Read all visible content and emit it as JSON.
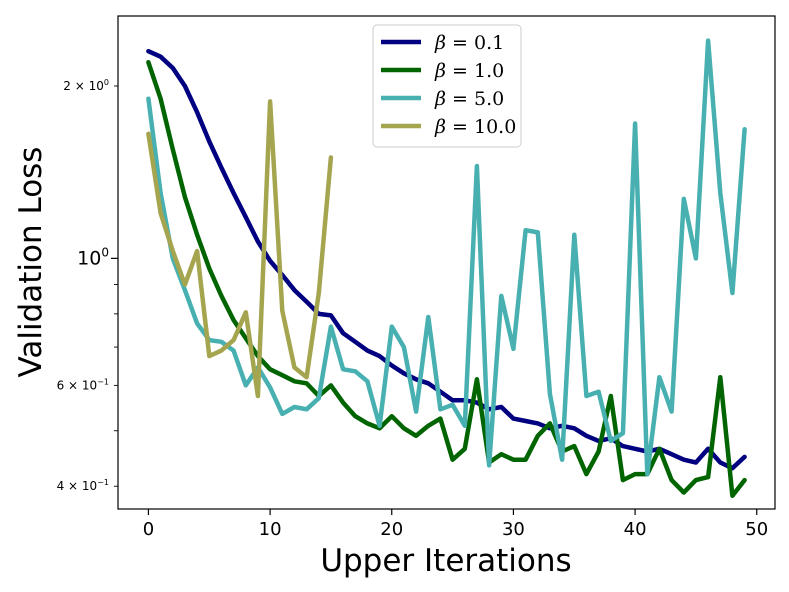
{
  "chart_data": {
    "type": "line",
    "title": "",
    "xlabel": "Upper Iterations",
    "ylabel": "Validation Loss",
    "yscale": "log",
    "xlim": [
      -2.5,
      51.5
    ],
    "ylim": [
      0.365,
      2.65
    ],
    "x_ticks": [
      0,
      10,
      20,
      30,
      40,
      50
    ],
    "y_ticks": [
      {
        "value": 0.4,
        "mantissa": "4",
        "sep": "×",
        "base": "10",
        "exp": "−1",
        "size": "small"
      },
      {
        "value": 0.6,
        "mantissa": "6",
        "sep": "×",
        "base": "10",
        "exp": "−1",
        "size": "small"
      },
      {
        "value": 1.0,
        "mantissa": "",
        "sep": "",
        "base": "10",
        "exp": "0",
        "size": "large"
      },
      {
        "value": 2.0,
        "mantissa": "2",
        "sep": "×",
        "base": "10",
        "exp": "0",
        "size": "small"
      }
    ],
    "legend_location": "top-center",
    "series": [
      {
        "name": "β = 0.1",
        "sym": "β",
        "eq": " = 0.1",
        "color": "#000080",
        "x": [
          0,
          1,
          2,
          3,
          4,
          5,
          6,
          7,
          8,
          9,
          10,
          11,
          12,
          13,
          14,
          15,
          16,
          17,
          18,
          19,
          20,
          21,
          22,
          23,
          24,
          25,
          26,
          27,
          28,
          29,
          30,
          31,
          32,
          33,
          34,
          35,
          36,
          37,
          38,
          39,
          40,
          41,
          42,
          43,
          44,
          45,
          46,
          47,
          48,
          49
        ],
        "values": [
          2.3,
          2.25,
          2.15,
          2.0,
          1.8,
          1.6,
          1.44,
          1.3,
          1.18,
          1.07,
          0.99,
          0.935,
          0.88,
          0.84,
          0.8,
          0.795,
          0.74,
          0.715,
          0.69,
          0.675,
          0.65,
          0.63,
          0.615,
          0.605,
          0.585,
          0.565,
          0.565,
          0.56,
          0.545,
          0.55,
          0.525,
          0.52,
          0.515,
          0.505,
          0.51,
          0.505,
          0.49,
          0.48,
          0.485,
          0.47,
          0.465,
          0.46,
          0.465,
          0.455,
          0.445,
          0.44,
          0.465,
          0.44,
          0.43,
          0.45
        ]
      },
      {
        "name": "β = 1.0",
        "sym": "β",
        "eq": " = 1.0",
        "color": "#006400",
        "x": [
          0,
          1,
          2,
          3,
          4,
          5,
          6,
          7,
          8,
          9,
          10,
          11,
          12,
          13,
          14,
          15,
          16,
          17,
          18,
          19,
          20,
          21,
          22,
          23,
          24,
          25,
          26,
          27,
          28,
          29,
          30,
          31,
          32,
          33,
          34,
          35,
          36,
          37,
          38,
          39,
          40,
          41,
          42,
          43,
          44,
          45,
          46,
          47,
          48,
          49
        ],
        "values": [
          2.2,
          1.9,
          1.55,
          1.28,
          1.1,
          0.96,
          0.86,
          0.78,
          0.725,
          0.675,
          0.64,
          0.625,
          0.61,
          0.605,
          0.575,
          0.6,
          0.56,
          0.53,
          0.515,
          0.505,
          0.53,
          0.505,
          0.49,
          0.51,
          0.525,
          0.445,
          0.465,
          0.615,
          0.44,
          0.455,
          0.445,
          0.445,
          0.49,
          0.515,
          0.46,
          0.47,
          0.42,
          0.46,
          0.575,
          0.41,
          0.42,
          0.42,
          0.465,
          0.41,
          0.39,
          0.41,
          0.415,
          0.62,
          0.385,
          0.41
        ]
      },
      {
        "name": "β = 5.0",
        "sym": "β",
        "eq": " = 5.0",
        "color": "#48B0B0",
        "x": [
          0,
          1,
          2,
          3,
          4,
          5,
          6,
          7,
          8,
          9,
          10,
          11,
          12,
          13,
          14,
          15,
          16,
          17,
          18,
          19,
          20,
          21,
          22,
          23,
          24,
          25,
          26,
          27,
          28,
          29,
          30,
          31,
          32,
          33,
          34,
          35,
          36,
          37,
          38,
          39,
          40,
          41,
          42,
          43,
          44,
          45,
          46,
          47,
          48,
          49
        ],
        "values": [
          1.9,
          1.3,
          1.0,
          0.88,
          0.77,
          0.72,
          0.715,
          0.69,
          0.6,
          0.645,
          0.595,
          0.535,
          0.55,
          0.545,
          0.57,
          0.76,
          0.64,
          0.635,
          0.61,
          0.51,
          0.76,
          0.7,
          0.54,
          0.79,
          0.545,
          0.555,
          0.51,
          1.45,
          0.435,
          0.86,
          0.695,
          1.12,
          1.11,
          0.58,
          0.445,
          1.1,
          0.575,
          0.585,
          0.48,
          0.495,
          1.72,
          0.42,
          0.62,
          0.54,
          1.27,
          1.0,
          2.4,
          1.3,
          0.87,
          1.68
        ]
      },
      {
        "name": "β = 10.0",
        "sym": "β",
        "eq": " = 10.0",
        "color": "#A5A550",
        "x": [
          0,
          1,
          2,
          3,
          4,
          5,
          6,
          7,
          8,
          9,
          10,
          11,
          12,
          13,
          14,
          15
        ],
        "values": [
          1.65,
          1.2,
          1.03,
          0.9,
          1.03,
          0.675,
          0.69,
          0.72,
          0.805,
          0.575,
          1.88,
          0.81,
          0.645,
          0.62,
          0.87,
          1.5
        ]
      }
    ]
  }
}
